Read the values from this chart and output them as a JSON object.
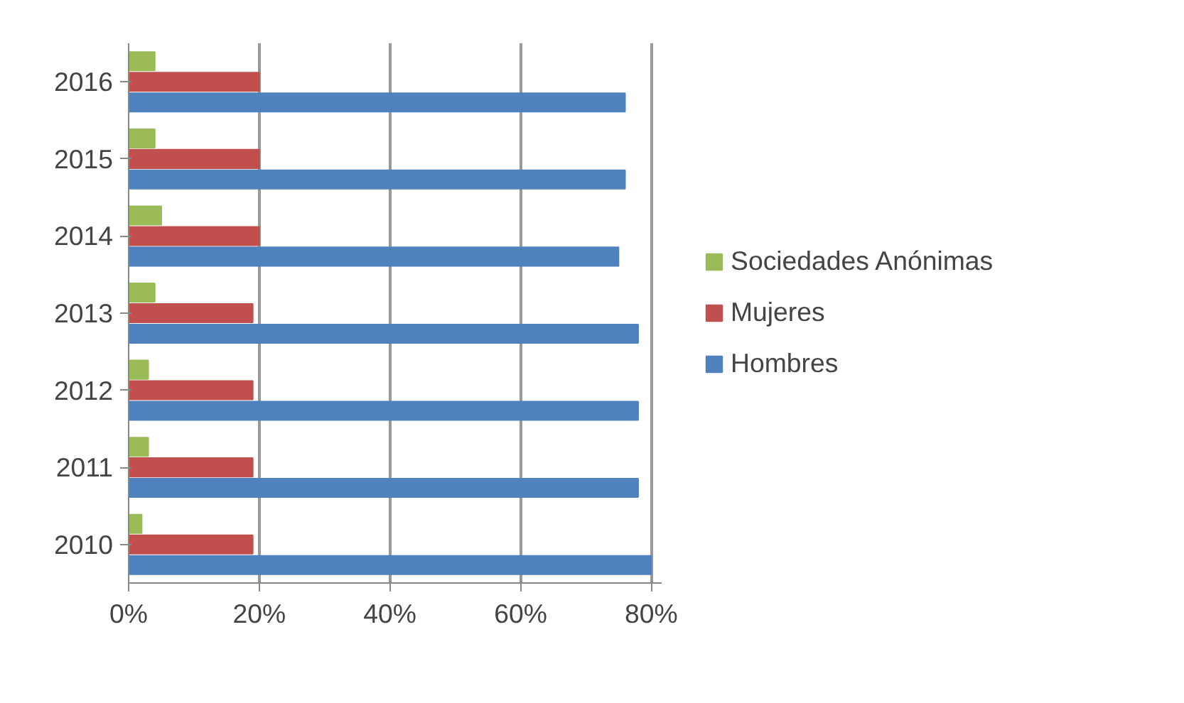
{
  "chart_data": {
    "type": "bar",
    "orientation": "horizontal",
    "categories": [
      "2016",
      "2015",
      "2014",
      "2013",
      "2012",
      "2011",
      "2010"
    ],
    "series": [
      {
        "name": "Hombres",
        "color": "#4f81bd",
        "values": [
          76,
          76,
          75,
          78,
          78,
          78,
          80
        ]
      },
      {
        "name": "Mujeres",
        "color": "#c0504d",
        "values": [
          20,
          20,
          20,
          19,
          19,
          19,
          19
        ]
      },
      {
        "name": "Sociedades Anónimas",
        "color": "#9bbb59",
        "values": [
          4,
          4,
          5,
          4,
          3,
          3,
          2
        ]
      }
    ],
    "xlim": [
      0,
      80
    ],
    "xticks": [
      {
        "value": 0,
        "label": "0%"
      },
      {
        "value": 20,
        "label": "20%"
      },
      {
        "value": 40,
        "label": "40%"
      },
      {
        "value": 60,
        "label": "60%"
      },
      {
        "value": 80,
        "label": "80%"
      }
    ],
    "grid": "x",
    "legend": "right"
  }
}
